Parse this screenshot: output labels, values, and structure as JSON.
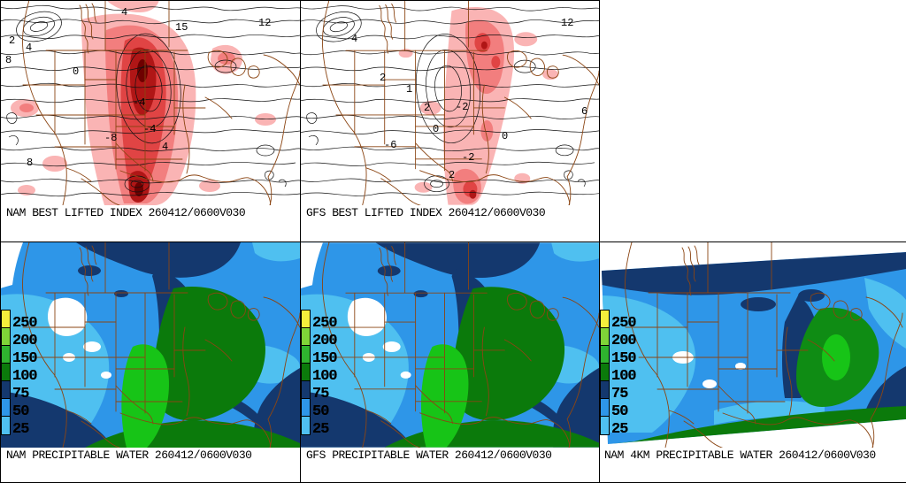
{
  "panels": {
    "nam_li": {
      "title": "NAM BEST LIFTED INDEX 260412/0600V030",
      "contour_labels": [
        "4",
        "15",
        "12",
        "2",
        "4",
        "8",
        "0",
        "-4",
        "-4",
        "4",
        "8",
        "-8"
      ]
    },
    "gfs_li": {
      "title": "GFS BEST LIFTED INDEX 260412/0600V030",
      "contour_labels": [
        "2",
        "1",
        "2",
        "-2",
        "0",
        "12",
        "6",
        "4",
        "-2",
        "2",
        "-6",
        "0"
      ]
    },
    "nam_pw": {
      "title": "NAM PRECIPITABLE WATER 260412/0600V030"
    },
    "gfs_pw": {
      "title": "GFS PRECIPITABLE WATER 260412/0600V030"
    },
    "nam4km_pw": {
      "title": "NAM 4KM PRECIPITABLE WATER 260412/0600V030"
    }
  },
  "pw_colorbar": {
    "labels": [
      "250",
      "200",
      "150",
      "100",
      "75",
      "50",
      "25"
    ],
    "segment_colors": [
      "#F5EE3C",
      "#7FD438",
      "#2FB42F",
      "#0B7A0B",
      "#14386E",
      "#2E96E8",
      "#4FC0F0"
    ]
  },
  "colors": {
    "panel_divider": "#000000",
    "geo_border_brown": "#8B4513",
    "contour_black": "#111111",
    "lifted_index_shading": [
      "#FAB4B4",
      "#F27E7E",
      "#E04444",
      "#B01616",
      "#6E0000"
    ],
    "precip_water_fills": {
      "lowest_white": "#FFFFFF",
      "light_blue": "#4FC0F0",
      "blue": "#2E96E8",
      "navy": "#14386E",
      "dark_green": "#0B7A0B",
      "bright_green": "#17C417"
    }
  }
}
